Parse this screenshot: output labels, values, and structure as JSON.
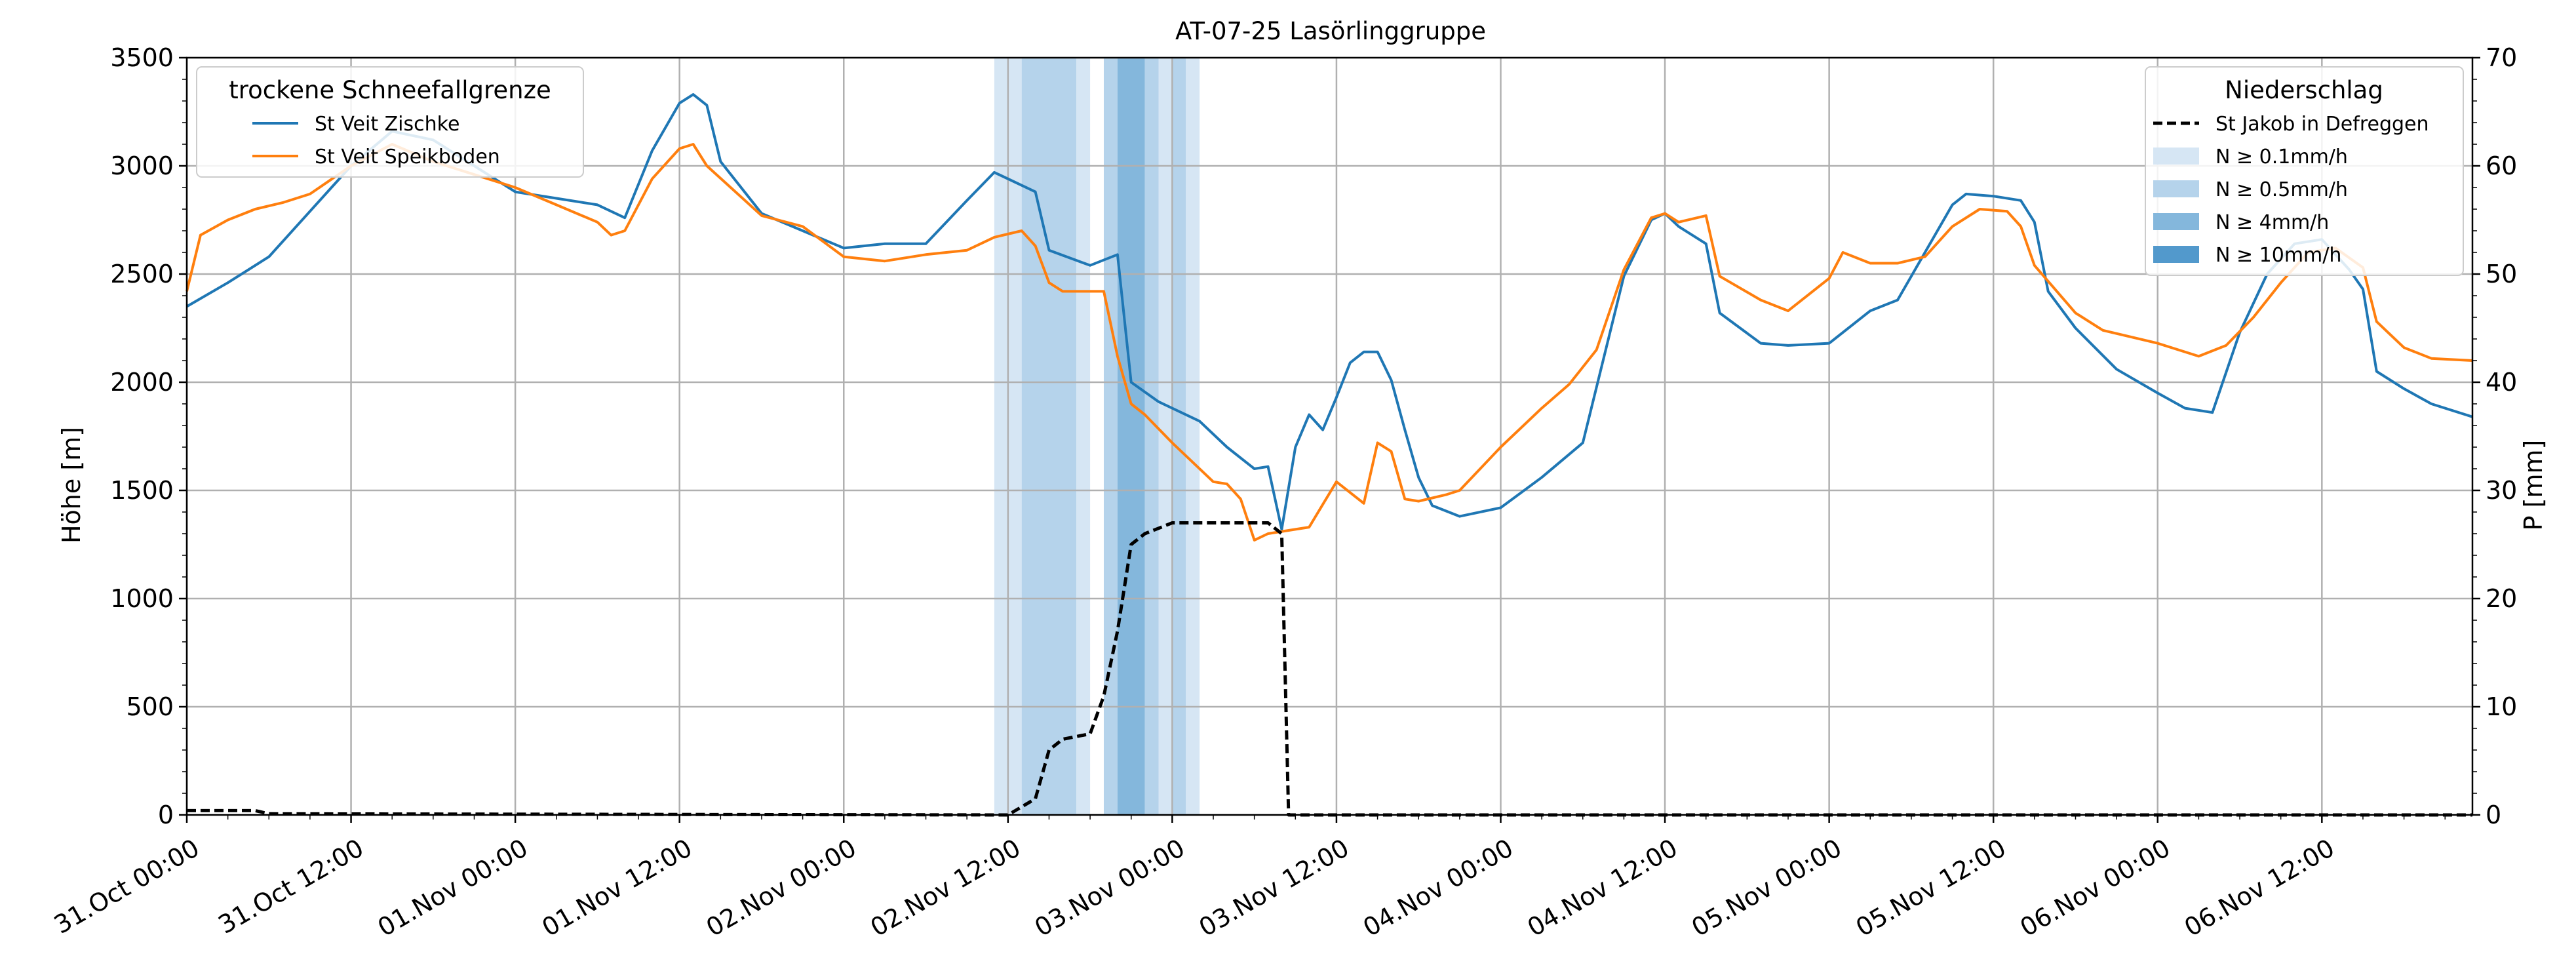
{
  "chart_data": {
    "type": "line",
    "title": "AT-07-25 Lasörlinggruppe",
    "ylabel": "Höhe [m]",
    "y2label": "P [mm]",
    "ylim": [
      0,
      3500
    ],
    "y2lim": [
      0,
      70
    ],
    "x_start": "31.Oct 00:00",
    "x_end": "06.Nov 23:00",
    "yticks": [
      0,
      500,
      1000,
      1500,
      2000,
      2500,
      3000,
      3500
    ],
    "y2ticks": [
      0,
      10,
      20,
      30,
      40,
      50,
      60,
      70
    ],
    "xticks": [
      "31.Oct 00:00",
      "31.Oct 12:00",
      "01.Nov 00:00",
      "01.Nov 12:00",
      "02.Nov 00:00",
      "02.Nov 12:00",
      "03.Nov 00:00",
      "03.Nov 12:00",
      "04.Nov 00:00",
      "04.Nov 12:00",
      "05.Nov 00:00",
      "05.Nov 12:00",
      "06.Nov 00:00",
      "06.Nov 12:00"
    ],
    "grid": true,
    "legend1": {
      "title": "trockene Schneefallgrenze",
      "position": "top-left",
      "entries": [
        "St Veit Zischke",
        "St Veit Speikboden"
      ]
    },
    "legend2": {
      "title": "Niederschlag",
      "position": "top-right",
      "line_entry": "St Jakob in Defreggen",
      "band_entries": [
        "N ≥ 0.1mm/h",
        "N ≥ 0.5mm/h",
        "N ≥ 4mm/h",
        "N ≥ 10mm/h"
      ]
    },
    "band_colors": [
      "#d6e6f4",
      "#b5d3eb",
      "#84b7dc",
      "#5299cc"
    ],
    "series": [
      {
        "name": "St Veit Zischke",
        "color": "#1f77b4",
        "points": [
          [
            "31.Oct 00:00",
            2350
          ],
          [
            "31.Oct 03:00",
            2460
          ],
          [
            "31.Oct 06:00",
            2580
          ],
          [
            "31.Oct 09:00",
            2790
          ],
          [
            "31.Oct 12:00",
            3000
          ],
          [
            "31.Oct 15:00",
            3160
          ],
          [
            "31.Oct 18:00",
            3120
          ],
          [
            "31.Oct 21:00",
            3000
          ],
          [
            "01.Nov 00:00",
            2880
          ],
          [
            "01.Nov 03:00",
            2850
          ],
          [
            "01.Nov 06:00",
            2820
          ],
          [
            "01.Nov 08:00",
            2760
          ],
          [
            "01.Nov 10:00",
            3070
          ],
          [
            "01.Nov 12:00",
            3290
          ],
          [
            "01.Nov 13:00",
            3330
          ],
          [
            "01.Nov 14:00",
            3280
          ],
          [
            "01.Nov 15:00",
            3020
          ],
          [
            "01.Nov 18:00",
            2780
          ],
          [
            "01.Nov 21:00",
            2700
          ],
          [
            "02.Nov 00:00",
            2620
          ],
          [
            "02.Nov 03:00",
            2640
          ],
          [
            "02.Nov 06:00",
            2640
          ],
          [
            "02.Nov 09:00",
            2840
          ],
          [
            "02.Nov 11:00",
            2970
          ],
          [
            "02.Nov 14:00",
            2880
          ],
          [
            "02.Nov 15:00",
            2610
          ],
          [
            "02.Nov 18:00",
            2540
          ],
          [
            "02.Nov 20:00",
            2590
          ],
          [
            "02.Nov 21:00",
            2000
          ],
          [
            "02.Nov 23:00",
            1910
          ],
          [
            "03.Nov 02:00",
            1820
          ],
          [
            "03.Nov 04:00",
            1700
          ],
          [
            "03.Nov 06:00",
            1600
          ],
          [
            "03.Nov 07:00",
            1610
          ],
          [
            "03.Nov 08:00",
            1320
          ],
          [
            "03.Nov 09:00",
            1700
          ],
          [
            "03.Nov 10:00",
            1850
          ],
          [
            "03.Nov 11:00",
            1780
          ],
          [
            "03.Nov 12:00",
            1930
          ],
          [
            "03.Nov 13:00",
            2090
          ],
          [
            "03.Nov 14:00",
            2140
          ],
          [
            "03.Nov 15:00",
            2140
          ],
          [
            "03.Nov 16:00",
            2010
          ],
          [
            "03.Nov 17:00",
            1780
          ],
          [
            "03.Nov 18:00",
            1560
          ],
          [
            "03.Nov 19:00",
            1430
          ],
          [
            "03.Nov 21:00",
            1380
          ],
          [
            "04.Nov 00:00",
            1420
          ],
          [
            "04.Nov 03:00",
            1560
          ],
          [
            "04.Nov 06:00",
            1720
          ],
          [
            "04.Nov 09:00",
            2490
          ],
          [
            "04.Nov 11:00",
            2750
          ],
          [
            "04.Nov 12:00",
            2780
          ],
          [
            "04.Nov 13:00",
            2720
          ],
          [
            "04.Nov 15:00",
            2640
          ],
          [
            "04.Nov 16:00",
            2320
          ],
          [
            "04.Nov 19:00",
            2180
          ],
          [
            "04.Nov 21:00",
            2170
          ],
          [
            "05.Nov 00:00",
            2180
          ],
          [
            "05.Nov 03:00",
            2330
          ],
          [
            "05.Nov 05:00",
            2380
          ],
          [
            "05.Nov 07:00",
            2600
          ],
          [
            "05.Nov 09:00",
            2820
          ],
          [
            "05.Nov 10:00",
            2870
          ],
          [
            "05.Nov 12:00",
            2860
          ],
          [
            "05.Nov 14:00",
            2840
          ],
          [
            "05.Nov 15:00",
            2740
          ],
          [
            "05.Nov 16:00",
            2420
          ],
          [
            "05.Nov 18:00",
            2250
          ],
          [
            "05.Nov 21:00",
            2060
          ],
          [
            "06.Nov 00:00",
            1950
          ],
          [
            "06.Nov 02:00",
            1880
          ],
          [
            "06.Nov 04:00",
            1860
          ],
          [
            "06.Nov 06:00",
            2230
          ],
          [
            "06.Nov 08:00",
            2500
          ],
          [
            "06.Nov 10:00",
            2640
          ],
          [
            "06.Nov 12:00",
            2660
          ],
          [
            "06.Nov 14:00",
            2520
          ],
          [
            "06.Nov 15:00",
            2430
          ],
          [
            "06.Nov 16:00",
            2050
          ],
          [
            "06.Nov 18:00",
            1970
          ],
          [
            "06.Nov 20:00",
            1900
          ],
          [
            "06.Nov 23:00",
            1840
          ]
        ]
      },
      {
        "name": "St Veit Speikboden",
        "color": "#ff7f0e",
        "points": [
          [
            "31.Oct 00:00",
            2420
          ],
          [
            "31.Oct 01:00",
            2680
          ],
          [
            "31.Oct 03:00",
            2750
          ],
          [
            "31.Oct 05:00",
            2800
          ],
          [
            "31.Oct 07:00",
            2830
          ],
          [
            "31.Oct 09:00",
            2870
          ],
          [
            "31.Oct 12:00",
            3000
          ],
          [
            "31.Oct 15:00",
            3100
          ],
          [
            "31.Oct 18:00",
            3020
          ],
          [
            "31.Oct 21:00",
            2960
          ],
          [
            "01.Nov 00:00",
            2900
          ],
          [
            "01.Nov 03:00",
            2820
          ],
          [
            "01.Nov 06:00",
            2740
          ],
          [
            "01.Nov 07:00",
            2680
          ],
          [
            "01.Nov 08:00",
            2700
          ],
          [
            "01.Nov 10:00",
            2940
          ],
          [
            "01.Nov 12:00",
            3080
          ],
          [
            "01.Nov 13:00",
            3100
          ],
          [
            "01.Nov 14:00",
            3000
          ],
          [
            "01.Nov 18:00",
            2770
          ],
          [
            "01.Nov 21:00",
            2720
          ],
          [
            "02.Nov 00:00",
            2580
          ],
          [
            "02.Nov 03:00",
            2560
          ],
          [
            "02.Nov 06:00",
            2590
          ],
          [
            "02.Nov 09:00",
            2610
          ],
          [
            "02.Nov 11:00",
            2670
          ],
          [
            "02.Nov 13:00",
            2700
          ],
          [
            "02.Nov 14:00",
            2630
          ],
          [
            "02.Nov 15:00",
            2460
          ],
          [
            "02.Nov 16:00",
            2420
          ],
          [
            "02.Nov 19:00",
            2420
          ],
          [
            "02.Nov 20:00",
            2120
          ],
          [
            "02.Nov 21:00",
            1900
          ],
          [
            "02.Nov 22:00",
            1850
          ],
          [
            "03.Nov 00:00",
            1720
          ],
          [
            "03.Nov 03:00",
            1540
          ],
          [
            "03.Nov 04:00",
            1530
          ],
          [
            "03.Nov 05:00",
            1460
          ],
          [
            "03.Nov 06:00",
            1270
          ],
          [
            "03.Nov 07:00",
            1300
          ],
          [
            "03.Nov 09:00",
            1320
          ],
          [
            "03.Nov 10:00",
            1330
          ],
          [
            "03.Nov 12:00",
            1540
          ],
          [
            "03.Nov 14:00",
            1440
          ],
          [
            "03.Nov 15:00",
            1720
          ],
          [
            "03.Nov 16:00",
            1680
          ],
          [
            "03.Nov 17:00",
            1460
          ],
          [
            "03.Nov 18:00",
            1450
          ],
          [
            "03.Nov 20:00",
            1480
          ],
          [
            "03.Nov 21:00",
            1500
          ],
          [
            "04.Nov 00:00",
            1700
          ],
          [
            "04.Nov 03:00",
            1880
          ],
          [
            "04.Nov 05:00",
            1990
          ],
          [
            "04.Nov 07:00",
            2150
          ],
          [
            "04.Nov 09:00",
            2520
          ],
          [
            "04.Nov 11:00",
            2760
          ],
          [
            "04.Nov 12:00",
            2780
          ],
          [
            "04.Nov 13:00",
            2740
          ],
          [
            "04.Nov 15:00",
            2770
          ],
          [
            "04.Nov 16:00",
            2490
          ],
          [
            "04.Nov 19:00",
            2380
          ],
          [
            "04.Nov 21:00",
            2330
          ],
          [
            "05.Nov 00:00",
            2480
          ],
          [
            "05.Nov 01:00",
            2600
          ],
          [
            "05.Nov 03:00",
            2550
          ],
          [
            "05.Nov 05:00",
            2550
          ],
          [
            "05.Nov 07:00",
            2580
          ],
          [
            "05.Nov 09:00",
            2720
          ],
          [
            "05.Nov 11:00",
            2800
          ],
          [
            "05.Nov 13:00",
            2790
          ],
          [
            "05.Nov 14:00",
            2720
          ],
          [
            "05.Nov 15:00",
            2540
          ],
          [
            "05.Nov 18:00",
            2320
          ],
          [
            "05.Nov 20:00",
            2240
          ],
          [
            "05.Nov 22:00",
            2210
          ],
          [
            "06.Nov 00:00",
            2180
          ],
          [
            "06.Nov 03:00",
            2120
          ],
          [
            "06.Nov 05:00",
            2170
          ],
          [
            "06.Nov 07:00",
            2300
          ],
          [
            "06.Nov 09:00",
            2460
          ],
          [
            "06.Nov 11:00",
            2600
          ],
          [
            "06.Nov 13:00",
            2620
          ],
          [
            "06.Nov 15:00",
            2530
          ],
          [
            "06.Nov 16:00",
            2280
          ],
          [
            "06.Nov 18:00",
            2160
          ],
          [
            "06.Nov 20:00",
            2110
          ],
          [
            "06.Nov 23:00",
            2100
          ]
        ]
      },
      {
        "name": "St Jakob in Defreggen",
        "color": "#000000",
        "axis": "right",
        "dashed": true,
        "points": [
          [
            "31.Oct 00:00",
            0.4
          ],
          [
            "31.Oct 05:00",
            0.4
          ],
          [
            "31.Oct 06:00",
            0.1
          ],
          [
            "02.Nov 12:00",
            0
          ],
          [
            "02.Nov 14:00",
            1.5
          ],
          [
            "02.Nov 15:00",
            6
          ],
          [
            "02.Nov 16:00",
            7
          ],
          [
            "02.Nov 18:00",
            7.5
          ],
          [
            "02.Nov 19:00",
            11
          ],
          [
            "02.Nov 20:00",
            17
          ],
          [
            "02.Nov 21:00",
            25
          ],
          [
            "02.Nov 22:00",
            26
          ],
          [
            "02.Nov 23:00",
            26.5
          ],
          [
            "03.Nov 00:00",
            27
          ],
          [
            "03.Nov 07:00",
            27
          ],
          [
            "03.Nov 08:00",
            26
          ],
          [
            "03.Nov 08:30",
            0
          ],
          [
            "06.Nov 23:00",
            0
          ]
        ]
      }
    ],
    "precip_bands": [
      {
        "start": "02.Nov 11:00",
        "end": "02.Nov 12:00",
        "level": 0
      },
      {
        "start": "02.Nov 12:00",
        "end": "02.Nov 13:00",
        "level": 0
      },
      {
        "start": "02.Nov 13:00",
        "end": "02.Nov 17:00",
        "level": 1
      },
      {
        "start": "02.Nov 17:00",
        "end": "02.Nov 18:00",
        "level": 0
      },
      {
        "start": "02.Nov 19:00",
        "end": "02.Nov 20:00",
        "level": 1
      },
      {
        "start": "02.Nov 20:00",
        "end": "02.Nov 22:00",
        "level": 2
      },
      {
        "start": "02.Nov 22:00",
        "end": "02.Nov 23:00",
        "level": 1
      },
      {
        "start": "02.Nov 23:00",
        "end": "03.Nov 00:00",
        "level": 0
      },
      {
        "start": "03.Nov 00:00",
        "end": "03.Nov 01:00",
        "level": 1
      },
      {
        "start": "03.Nov 01:00",
        "end": "03.Nov 02:00",
        "level": 0
      }
    ]
  }
}
